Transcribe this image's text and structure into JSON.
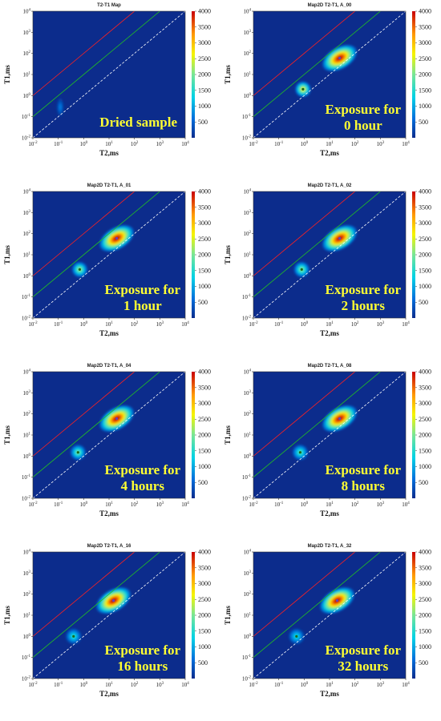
{
  "chart_data": [
    {
      "type": "heatmap",
      "title": "T2-T1 Map",
      "xlabel": "T2,ms",
      "ylabel": "T1,ms",
      "x_scale": "log",
      "y_scale": "log",
      "xlim": [
        0.01,
        10000
      ],
      "ylim": [
        0.01,
        10000
      ],
      "x_ticks": [
        "10^-2",
        "10^-1",
        "10^0",
        "10^1",
        "10^2",
        "10^3",
        "10^4"
      ],
      "y_ticks": [
        "10^-2",
        "10^-1",
        "10^0",
        "10^1",
        "10^2",
        "10^3",
        "10^4"
      ],
      "colorbar": {
        "min": 0,
        "max": 4000,
        "ticks": [
          500,
          1000,
          1500,
          2000,
          2500,
          3000,
          3500,
          4000
        ]
      },
      "annotation": [
        "Dried sample"
      ],
      "peaks": [
        {
          "t2": 0.12,
          "t1": 0.28,
          "amplitude": 700
        }
      ]
    },
    {
      "type": "heatmap",
      "title": "Map2D T2-T1,   A_00",
      "xlabel": "T2,ms",
      "ylabel": "T1,ms",
      "x_scale": "log",
      "y_scale": "log",
      "xlim": [
        0.01,
        10000
      ],
      "ylim": [
        0.01,
        10000
      ],
      "x_ticks": [
        "10^-2",
        "10^-1",
        "10^0",
        "10^1",
        "10^2",
        "10^3",
        "10^4"
      ],
      "y_ticks": [
        "10^-2",
        "10^-1",
        "10^0",
        "10^1",
        "10^2",
        "10^3",
        "10^4"
      ],
      "colorbar": {
        "min": 0,
        "max": 4000,
        "ticks": [
          500,
          1000,
          1500,
          2000,
          2500,
          3000,
          3500,
          4000
        ]
      },
      "annotation": [
        "Exposure for",
        "0 hour"
      ],
      "peaks": [
        {
          "t2": 25,
          "t1": 60,
          "amplitude": 4000
        },
        {
          "t2": 0.9,
          "t1": 2,
          "amplitude": 2600
        }
      ]
    },
    {
      "type": "heatmap",
      "title": "Map2D T2-T1,   A_01",
      "xlabel": "T2,ms",
      "ylabel": "T1,ms",
      "x_scale": "log",
      "y_scale": "log",
      "xlim": [
        0.01,
        10000
      ],
      "ylim": [
        0.01,
        10000
      ],
      "x_ticks": [
        "10^-2",
        "10^-1",
        "10^0",
        "10^1",
        "10^2",
        "10^3",
        "10^4"
      ],
      "y_ticks": [
        "10^-2",
        "10^-1",
        "10^0",
        "10^1",
        "10^2",
        "10^3",
        "10^4"
      ],
      "colorbar": {
        "min": 0,
        "max": 4000,
        "ticks": [
          500,
          1000,
          1500,
          2000,
          2500,
          3000,
          3500,
          4000
        ]
      },
      "annotation": [
        "Exposure for",
        "1 hour"
      ],
      "peaks": [
        {
          "t2": 20,
          "t1": 60,
          "amplitude": 4000
        },
        {
          "t2": 0.7,
          "t1": 2,
          "amplitude": 2100
        }
      ]
    },
    {
      "type": "heatmap",
      "title": "Map2D T2-T1,   A_02",
      "xlabel": "T2,ms",
      "ylabel": "T1,ms",
      "x_scale": "log",
      "y_scale": "log",
      "xlim": [
        0.01,
        10000
      ],
      "ylim": [
        0.01,
        10000
      ],
      "x_ticks": [
        "10^-2",
        "10^-1",
        "10^0",
        "10^1",
        "10^2",
        "10^3",
        "10^4"
      ],
      "y_ticks": [
        "10^-2",
        "10^-1",
        "10^0",
        "10^1",
        "10^2",
        "10^3",
        "10^4"
      ],
      "colorbar": {
        "min": 0,
        "max": 4000,
        "ticks": [
          500,
          1000,
          1500,
          2000,
          2500,
          3000,
          3500,
          4000
        ]
      },
      "annotation": [
        "Exposure for",
        "2 hours"
      ],
      "peaks": [
        {
          "t2": 25,
          "t1": 60,
          "amplitude": 4000
        },
        {
          "t2": 0.8,
          "t1": 2,
          "amplitude": 2000
        }
      ]
    },
    {
      "type": "heatmap",
      "title": "Map2D T2-T1,   A_04",
      "xlabel": "T2,ms",
      "ylabel": "T1,ms",
      "x_scale": "log",
      "y_scale": "log",
      "xlim": [
        0.01,
        10000
      ],
      "ylim": [
        0.01,
        10000
      ],
      "x_ticks": [
        "10^-2",
        "10^-1",
        "10^0",
        "10^1",
        "10^2",
        "10^3",
        "10^4"
      ],
      "y_ticks": [
        "10^-2",
        "10^-1",
        "10^0",
        "10^1",
        "10^2",
        "10^3",
        "10^4"
      ],
      "colorbar": {
        "min": 0,
        "max": 4000,
        "ticks": [
          500,
          1000,
          1500,
          2000,
          2500,
          3000,
          3500,
          4000
        ]
      },
      "annotation": [
        "Exposure for",
        "4 hours"
      ],
      "peaks": [
        {
          "t2": 20,
          "t1": 60,
          "amplitude": 4000
        },
        {
          "t2": 0.6,
          "t1": 1.5,
          "amplitude": 1900
        }
      ]
    },
    {
      "type": "heatmap",
      "title": "Map2D T2-T1,   A_08",
      "xlabel": "T2,ms",
      "ylabel": "T1,ms",
      "x_scale": "log",
      "y_scale": "log",
      "xlim": [
        0.01,
        10000
      ],
      "ylim": [
        0.01,
        10000
      ],
      "x_ticks": [
        "10^-2",
        "10^-1",
        "10^0",
        "10^1",
        "10^2",
        "10^3",
        "10^4"
      ],
      "y_ticks": [
        "10^-2",
        "10^-1",
        "10^0",
        "10^1",
        "10^2",
        "10^3",
        "10^4"
      ],
      "colorbar": {
        "min": 0,
        "max": 4000,
        "ticks": [
          500,
          1000,
          1500,
          2000,
          2500,
          3000,
          3500,
          4000
        ]
      },
      "annotation": [
        "Exposure for",
        "8 hours"
      ],
      "peaks": [
        {
          "t2": 25,
          "t1": 60,
          "amplitude": 4000
        },
        {
          "t2": 0.7,
          "t1": 1.5,
          "amplitude": 1700
        }
      ]
    },
    {
      "type": "heatmap",
      "title": "Map2D T2-T1,   A_16",
      "xlabel": "T2,ms",
      "ylabel": "T1,ms",
      "x_scale": "log",
      "y_scale": "log",
      "xlim": [
        0.01,
        10000
      ],
      "ylim": [
        0.01,
        10000
      ],
      "x_ticks": [
        "10^-2",
        "10^-1",
        "10^0",
        "10^1",
        "10^2",
        "10^3",
        "10^4"
      ],
      "y_ticks": [
        "10^-2",
        "10^-1",
        "10^0",
        "10^1",
        "10^2",
        "10^3",
        "10^4"
      ],
      "colorbar": {
        "min": 0,
        "max": 4000,
        "ticks": [
          500,
          1000,
          1500,
          2000,
          2500,
          3000,
          3500,
          4000
        ]
      },
      "annotation": [
        "Exposure for",
        "16 hours"
      ],
      "peaks": [
        {
          "t2": 15,
          "t1": 50,
          "amplitude": 4000
        },
        {
          "t2": 0.4,
          "t1": 1,
          "amplitude": 1500
        }
      ]
    },
    {
      "type": "heatmap",
      "title": "Map2D T2-T1,   A_32",
      "xlabel": "T2,ms",
      "ylabel": "T1,ms",
      "x_scale": "log",
      "y_scale": "log",
      "xlim": [
        0.01,
        10000
      ],
      "ylim": [
        0.01,
        10000
      ],
      "x_ticks": [
        "10^-2",
        "10^-1",
        "10^0",
        "10^1",
        "10^2",
        "10^3",
        "10^4"
      ],
      "y_ticks": [
        "10^-2",
        "10^-1",
        "10^0",
        "10^1",
        "10^2",
        "10^3",
        "10^4"
      ],
      "colorbar": {
        "min": 0,
        "max": 4000,
        "ticks": [
          500,
          1000,
          1500,
          2000,
          2500,
          3000,
          3500,
          4000
        ]
      },
      "annotation": [
        "Exposure for",
        "32 hours"
      ],
      "peaks": [
        {
          "t2": 20,
          "t1": 50,
          "amplitude": 4000
        },
        {
          "t2": 0.5,
          "t1": 1,
          "amplitude": 1400
        }
      ]
    }
  ],
  "colors": {
    "background_field": "#0c2c8c",
    "line_red": "#ff2020",
    "line_green": "#22c022",
    "line_white": "#ffffff",
    "annotation_text": "#ffff33"
  }
}
